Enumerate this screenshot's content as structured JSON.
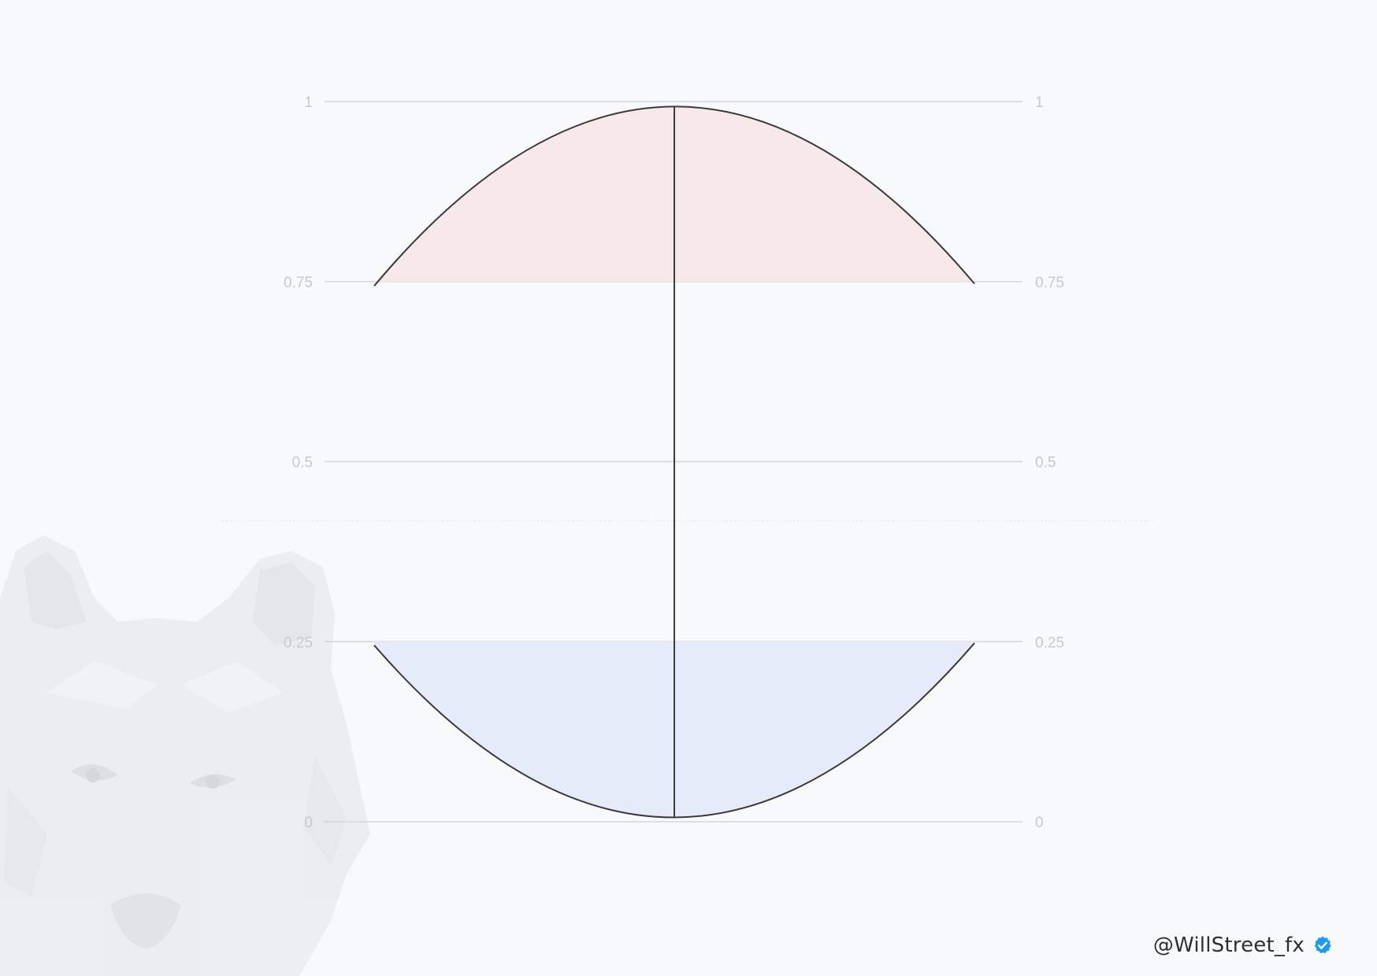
{
  "chart_data": {
    "type": "area",
    "title": "",
    "xlabel": "",
    "ylabel": "",
    "ylim": [
      0,
      1
    ],
    "y_ticks_left": [
      "1",
      "0.75",
      "0.5",
      "0.25",
      "0"
    ],
    "y_ticks_right": [
      "1",
      "0.75",
      "0.5",
      "0.25",
      "0"
    ],
    "grid": true,
    "legend": "none",
    "series": [
      {
        "shape": "arc",
        "x": [
          0,
          0.25,
          0.5,
          0.75,
          1
        ],
        "values": [
          0.744,
          0.929,
          0.993,
          0.929,
          0.747
        ],
        "fill_baseline": 0.75,
        "fill_color": "#f7e9ea"
      },
      {
        "shape": "arc",
        "x": [
          0,
          0.25,
          0.5,
          0.75,
          1
        ],
        "values": [
          0.245,
          0.066,
          0.006,
          0.066,
          0.248
        ],
        "fill_baseline": 0.25,
        "fill_color": "#e6ebfa"
      }
    ],
    "vertical_line": {
      "x": 0.5,
      "from": 0.006,
      "to": 0.993
    }
  },
  "watermark": {
    "handle": "@WillStreet_fx",
    "icon": "verified-badge-icon",
    "logo": "wolf-head-logo"
  },
  "colors": {
    "background": "#f8f9fb",
    "grid": "#d4d6db",
    "curve": "#3a3a3a",
    "tick_text": "#c6c9cf",
    "verified": "#1d9bf0"
  }
}
